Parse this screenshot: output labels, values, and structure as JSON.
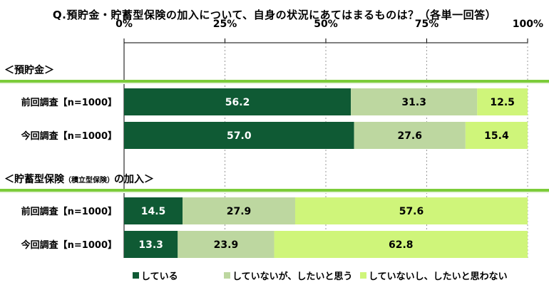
{
  "title": "Q.預貯金・貯蓄型保険の加入について、自身の状況にあてはまるものは？（各単一回答）",
  "chart_data": {
    "type": "bar",
    "orientation": "horizontal",
    "stacked": true,
    "xlim": [
      0,
      100
    ],
    "x_ticks": [
      "0%",
      "25%",
      "50%",
      "75%",
      "100%"
    ],
    "groups": [
      {
        "label": "＜預貯金＞",
        "rows": [
          {
            "label": "前回調査【n=1000】",
            "values": [
              56.2,
              31.3,
              12.5
            ]
          },
          {
            "label": "今回調査【n=1000】",
            "values": [
              57.0,
              27.6,
              15.4
            ]
          }
        ]
      },
      {
        "label": "＜貯蓄型保険",
        "label_small": "（積立型保険）",
        "label_tail": "の加入＞",
        "rows": [
          {
            "label": "前回調査【n=1000】",
            "values": [
              14.5,
              27.9,
              57.6
            ]
          },
          {
            "label": "今回調査【n=1000】",
            "values": [
              13.3,
              23.9,
              62.8
            ]
          }
        ]
      }
    ],
    "series": [
      {
        "name": "している",
        "color": "#0f5a34",
        "text_color": "#ffffff"
      },
      {
        "name": "していないが、したいと思う",
        "color": "#bdd7a0",
        "text_color": "#000000"
      },
      {
        "name": "していないし、したいと思わない",
        "color": "#cff57a",
        "text_color": "#000000"
      }
    ],
    "legend_position": "bottom",
    "group_header_color": "#7ccc3a"
  }
}
